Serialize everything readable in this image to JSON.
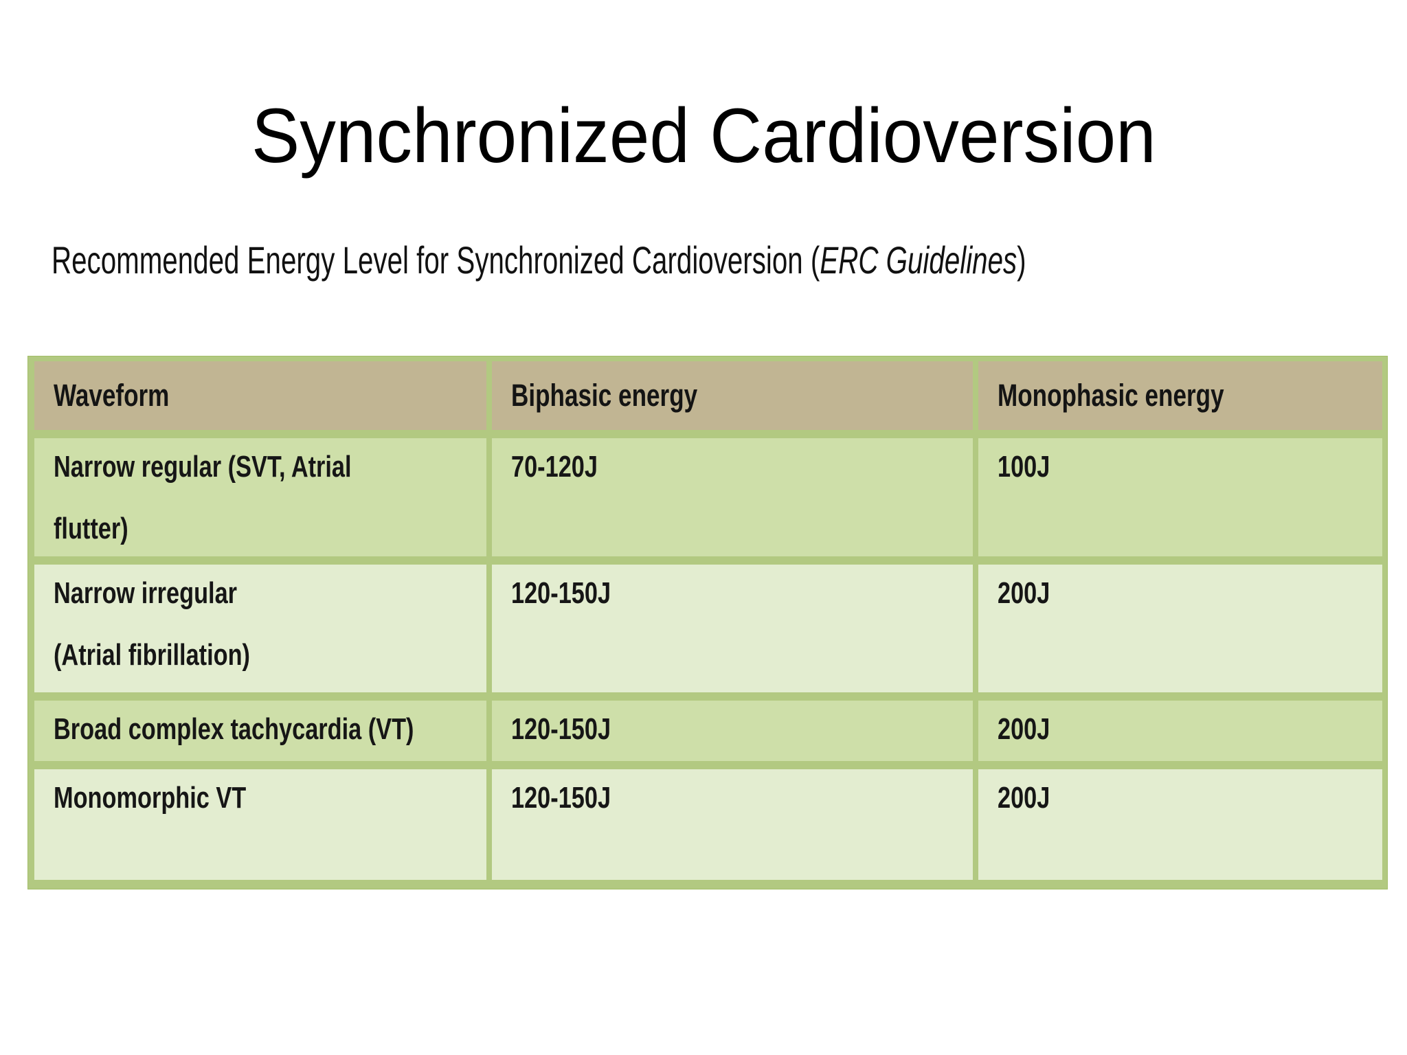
{
  "slide": {
    "title": "Synchronized Cardioversion",
    "subtitle_prefix": "Recommended Energy Level for Synchronized Cardioversion (",
    "subtitle_italic": "ERC Guidelines",
    "subtitle_suffix": ")"
  },
  "table": {
    "columns": [
      "Waveform",
      "Biphasic energy",
      "Monophasic energy"
    ],
    "rows": [
      {
        "waveform_lines": [
          "Narrow regular (SVT, Atrial",
          "flutter)"
        ],
        "biphasic": "70-120J",
        "monophasic": "100J"
      },
      {
        "waveform_lines": [
          "Narrow irregular",
          "(Atrial fibrillation)"
        ],
        "biphasic": "120-150J",
        "monophasic": "200J"
      },
      {
        "waveform_lines": [
          "Broad complex tachycardia (VT)"
        ],
        "biphasic": "120-150J",
        "monophasic": "200J"
      },
      {
        "waveform_lines": [
          "Monomorphic VT"
        ],
        "biphasic": "120-150J",
        "monophasic": "200J"
      }
    ]
  },
  "colors": {
    "header_bg": "#c1b593",
    "row_green": "#cedfa9",
    "row_light": "#e3edd0",
    "border_green": "#b2c981",
    "outer_border": "#a2bd68",
    "title_text": "#000000",
    "body_text": "#161616",
    "page_bg": "#ffffff"
  }
}
